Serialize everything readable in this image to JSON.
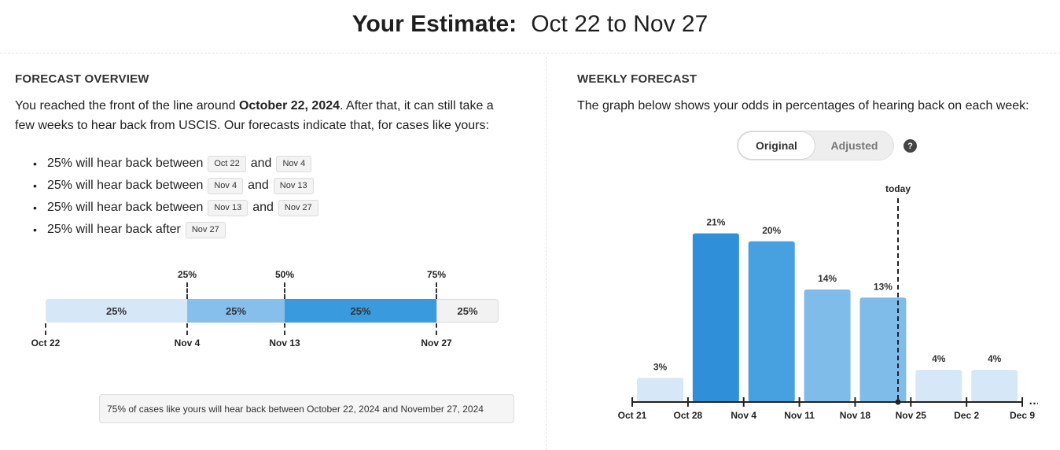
{
  "header": {
    "label": "Your Estimate:",
    "range": "Oct 22 to Nov 27"
  },
  "overview": {
    "title": "FORECAST OVERVIEW",
    "intro_line1_pre": "You reached the front of the line around ",
    "intro_date": "October 22, 2024",
    "intro_line1_post": ". After that, it can still take a",
    "intro_line2": "few weeks to hear back from USCIS. Our forecasts indicate that, for cases like yours:",
    "ranges": [
      {
        "text": "25% will hear back between",
        "from": "Oct 22",
        "and": "and",
        "to": "Nov 4"
      },
      {
        "text": "25% will hear back between",
        "from": "Nov 4",
        "and": "and",
        "to": "Nov 13"
      },
      {
        "text": "25% will hear back between",
        "from": "Nov 13",
        "and": "and",
        "to": "Nov 27"
      },
      {
        "text": "25% will hear back after",
        "from": "Nov 27",
        "and": "",
        "to": ""
      }
    ],
    "progress": {
      "segments": [
        {
          "label": "25%",
          "share": 0.3125,
          "color": "#d6e8f8"
        },
        {
          "label": "25%",
          "share": 0.2153,
          "color": "#86bfec"
        },
        {
          "label": "25%",
          "share": 0.3351,
          "color": "#3a9ade"
        },
        {
          "label": "25%",
          "share": 0.1371,
          "color": "#f2f2f2"
        }
      ],
      "markers": [
        "25%",
        "50%",
        "75%"
      ],
      "dates": [
        "Oct 22",
        "Nov 4",
        "Nov 13",
        "Nov 27"
      ]
    },
    "summary": "75% of cases like yours will hear back between October 22, 2024 and November 27, 2024"
  },
  "weekly": {
    "title": "WEEKLY FORECAST",
    "description": "The graph below shows your odds in percentages of hearing back on each week:",
    "toggle": {
      "original": "Original",
      "adjusted": "Adjusted",
      "selected": "Original"
    },
    "help_icon": "?",
    "today_label": "today",
    "ellipsis": "…"
  },
  "chart_data": {
    "type": "bar",
    "x_ticks": [
      "Oct 21",
      "Oct 28",
      "Nov 4",
      "Nov 11",
      "Nov 18",
      "Nov 25",
      "Dec 2",
      "Dec 9"
    ],
    "weeks": [
      "Oct 21",
      "Oct 28",
      "Nov 4",
      "Nov 11",
      "Nov 18",
      "Nov 25",
      "Dec 2"
    ],
    "values": [
      3,
      21,
      20,
      14,
      13,
      4,
      4
    ],
    "value_labels": [
      "3%",
      "21%",
      "20%",
      "14%",
      "13%",
      "4%",
      "4%"
    ],
    "colors": [
      "#d6e8f8",
      "#2f8fd8",
      "#47a0e0",
      "#7fbcea",
      "#7fbcea",
      "#d6e8f8",
      "#d6e8f8"
    ],
    "today_between": [
      "Nov 18",
      "Nov 25"
    ],
    "ylim": [
      0,
      22
    ]
  }
}
